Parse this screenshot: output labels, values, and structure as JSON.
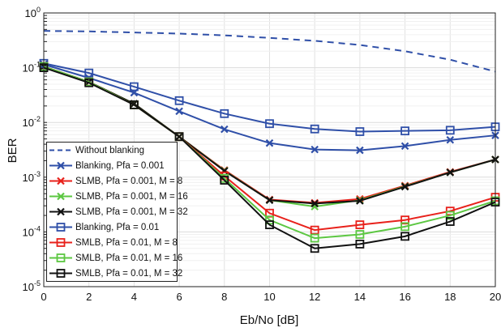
{
  "chart_data": {
    "type": "line",
    "title": "",
    "xlabel": "Eb/No [dB]",
    "ylabel": "BER",
    "xlim": [
      0,
      20
    ],
    "ylim_log10": [
      -5,
      0
    ],
    "yscale": "log",
    "grid": true,
    "legend_placement": "lower-left",
    "x_ticks": [
      "0",
      "2",
      "4",
      "6",
      "8",
      "10",
      "12",
      "14",
      "16",
      "18",
      "20"
    ],
    "y_ticks": [
      {
        "base": "10",
        "exp": "0"
      },
      {
        "base": "10",
        "exp": "-1"
      },
      {
        "base": "10",
        "exp": "-2"
      },
      {
        "base": "10",
        "exp": "-3"
      },
      {
        "base": "10",
        "exp": "-4"
      },
      {
        "base": "10",
        "exp": "-5"
      }
    ],
    "x": [
      0,
      2,
      4,
      6,
      8,
      10,
      12,
      14,
      16,
      18,
      20
    ],
    "series": [
      {
        "name": "Without blanking",
        "color": "#2f4fa8",
        "marker": "none",
        "dashed": true,
        "values": [
          0.47,
          0.46,
          0.44,
          0.42,
          0.39,
          0.35,
          0.31,
          0.26,
          0.2,
          0.14,
          0.085
        ]
      },
      {
        "name": "Blanking, Pfa = 0.001",
        "color": "#2f4fa8",
        "marker": "x",
        "values": [
          0.115,
          0.065,
          0.035,
          0.016,
          0.0075,
          0.0042,
          0.0032,
          0.0031,
          0.0037,
          0.0048,
          0.0058
        ]
      },
      {
        "name": "SLMB, Pfa = 0.001, M = 8",
        "color": "#e8211b",
        "marker": "x",
        "values": [
          0.105,
          0.055,
          0.022,
          0.0055,
          0.00135,
          0.00039,
          0.00034,
          0.0004,
          0.0007,
          0.00125,
          0.0021
        ]
      },
      {
        "name": "SLMB, Pfa = 0.001, M = 16",
        "color": "#5cc742",
        "marker": "x",
        "values": [
          0.105,
          0.055,
          0.022,
          0.0055,
          0.00132,
          0.00038,
          0.00029,
          0.00038,
          0.00068,
          0.00122,
          0.0021
        ]
      },
      {
        "name": "SLMB, Pfa = 0.001, M = 32",
        "color": "#111111",
        "marker": "x",
        "values": [
          0.105,
          0.055,
          0.022,
          0.0055,
          0.0013,
          0.00038,
          0.00033,
          0.00037,
          0.00067,
          0.00122,
          0.0021
        ]
      },
      {
        "name": "Blanking, Pfa = 0.01",
        "color": "#2f4fa8",
        "marker": "square",
        "values": [
          0.12,
          0.08,
          0.045,
          0.025,
          0.0145,
          0.0095,
          0.0076,
          0.0068,
          0.007,
          0.0072,
          0.0083
        ]
      },
      {
        "name": "SMLB, Pfa = 0.01, M = 8",
        "color": "#e8211b",
        "marker": "square",
        "values": [
          0.105,
          0.055,
          0.021,
          0.0055,
          0.00105,
          0.00022,
          0.000108,
          0.000135,
          0.000165,
          0.00024,
          0.00043
        ]
      },
      {
        "name": "SMLB, Pfa = 0.01, M = 16",
        "color": "#5cc742",
        "marker": "square",
        "values": [
          0.105,
          0.055,
          0.021,
          0.0055,
          0.00095,
          0.000165,
          7.7e-05,
          9e-05,
          0.000125,
          0.0002,
          0.00037
        ]
      },
      {
        "name": "SMLB, Pfa = 0.01, M = 32",
        "color": "#111111",
        "marker": "square",
        "values": [
          0.1,
          0.053,
          0.021,
          0.0055,
          0.00088,
          0.000135,
          5e-05,
          6e-05,
          8.3e-05,
          0.000155,
          0.00035
        ]
      }
    ]
  }
}
